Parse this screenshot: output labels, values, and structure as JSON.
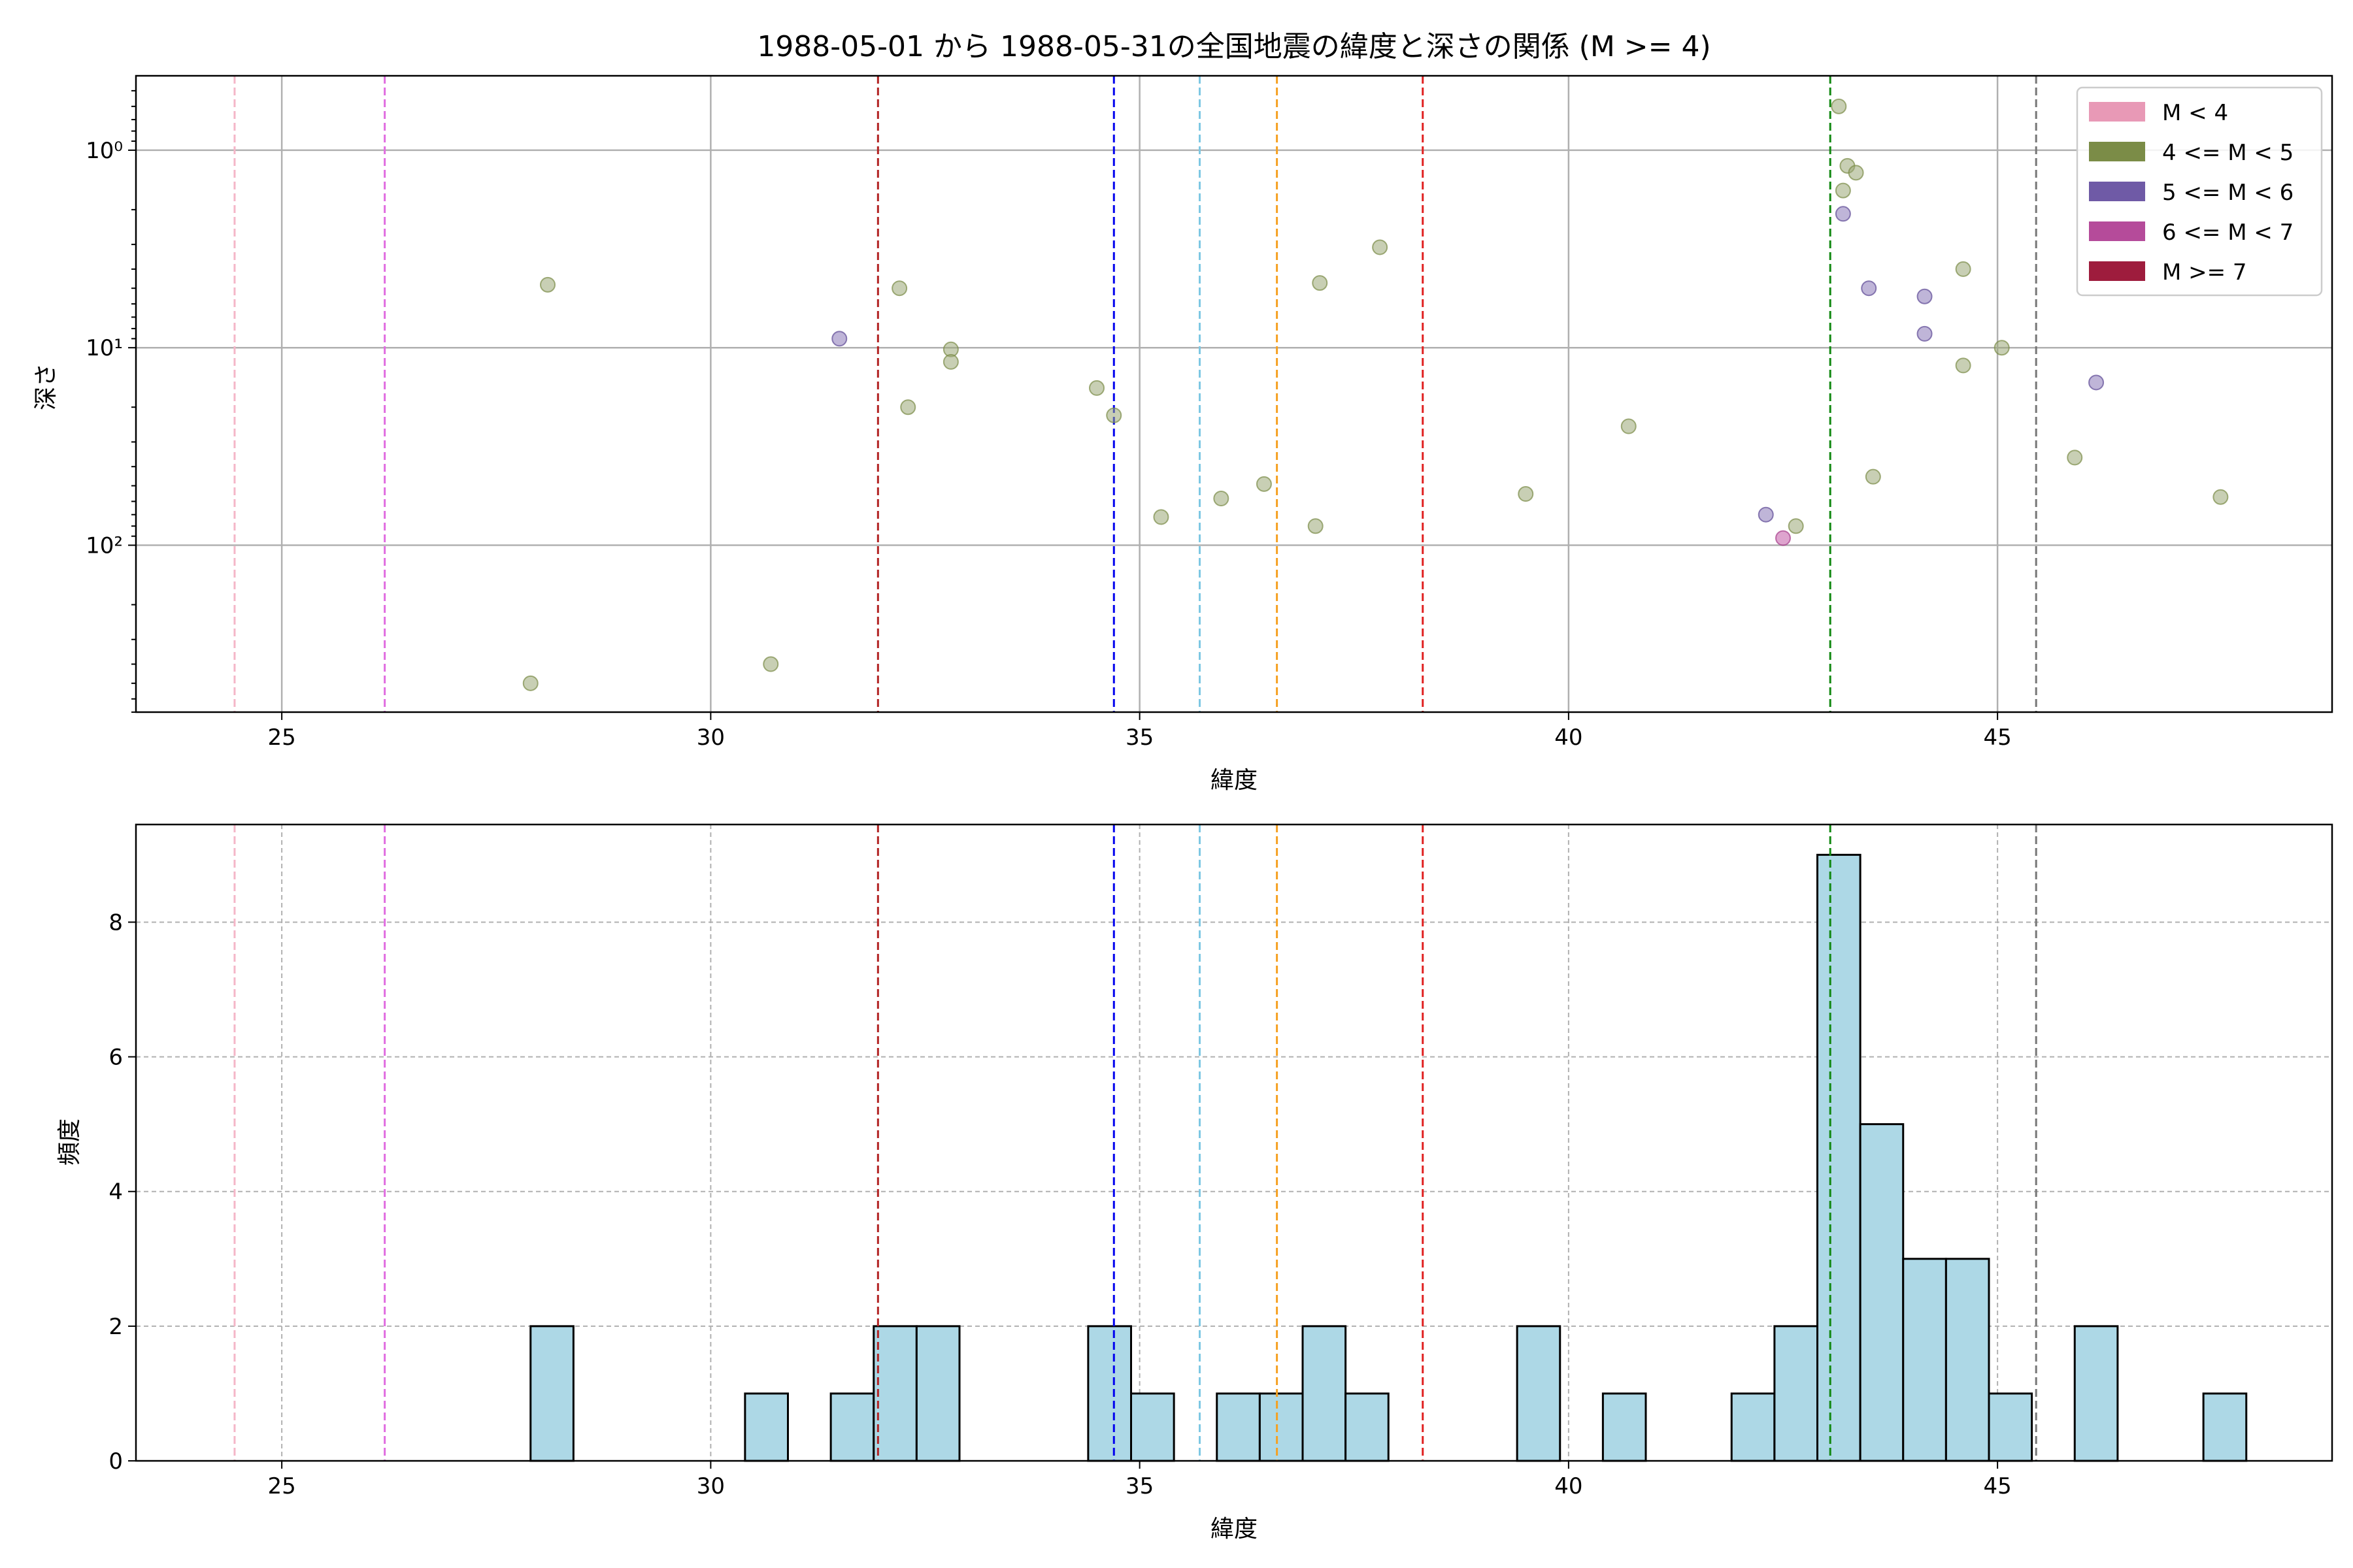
{
  "chart_data": [
    {
      "type": "scatter",
      "title": "1988-05-01 から 1988-05-31の全国地震の緯度と深さの関係 (M >= 4)",
      "xlabel": "緯度",
      "ylabel": "深さ",
      "xlim": [
        23.3,
        48.9
      ],
      "ylim": [
        0.42,
        700
      ],
      "y_scale": "log",
      "y_inverted": true,
      "x_ticks": [
        25,
        30,
        35,
        40,
        45
      ],
      "y_ticks": [
        {
          "value": 1,
          "label": "10⁰"
        },
        {
          "value": 10,
          "label": "10¹"
        },
        {
          "value": 100,
          "label": "10²"
        }
      ],
      "grid": true,
      "legend_position": "top-right",
      "legend": [
        {
          "label": "M < 4",
          "color": "#e899b6"
        },
        {
          "label": "4 <= M < 5",
          "color": "#7b8c47"
        },
        {
          "label": "5 <= M < 6",
          "color": "#6f5aa6"
        },
        {
          "label": "6 <= M < 7",
          "color": "#b54b9a"
        },
        {
          "label": "M >= 7",
          "color": "#9e1c3d"
        }
      ],
      "vertical_lines": [
        {
          "x": 24.45,
          "color": "#f4b6c8"
        },
        {
          "x": 26.2,
          "color": "#e06ee0"
        },
        {
          "x": 31.95,
          "color": "#b22222"
        },
        {
          "x": 34.7,
          "color": "#0000ee"
        },
        {
          "x": 35.7,
          "color": "#7ec8e3"
        },
        {
          "x": 36.6,
          "color": "#f5a020"
        },
        {
          "x": 38.3,
          "color": "#e02020"
        },
        {
          "x": 43.05,
          "color": "#118811"
        },
        {
          "x": 45.45,
          "color": "#777777"
        }
      ],
      "points": [
        {
          "x": 27.9,
          "y": 500,
          "m": "4-5"
        },
        {
          "x": 28.1,
          "y": 4.8,
          "m": "4-5"
        },
        {
          "x": 30.7,
          "y": 400,
          "m": "4-5"
        },
        {
          "x": 31.5,
          "y": 9,
          "m": "5-6"
        },
        {
          "x": 32.2,
          "y": 5,
          "m": "4-5"
        },
        {
          "x": 32.3,
          "y": 20,
          "m": "4-5"
        },
        {
          "x": 32.8,
          "y": 10.2,
          "m": "4-5"
        },
        {
          "x": 32.8,
          "y": 11.8,
          "m": "4-5"
        },
        {
          "x": 34.5,
          "y": 16,
          "m": "4-5"
        },
        {
          "x": 34.7,
          "y": 22,
          "m": "4-5"
        },
        {
          "x": 35.25,
          "y": 72,
          "m": "4-5"
        },
        {
          "x": 35.95,
          "y": 58,
          "m": "4-5"
        },
        {
          "x": 36.45,
          "y": 49,
          "m": "4-5"
        },
        {
          "x": 37.05,
          "y": 80,
          "m": "4-5"
        },
        {
          "x": 37.1,
          "y": 4.7,
          "m": "4-5"
        },
        {
          "x": 37.8,
          "y": 3.1,
          "m": "4-5"
        },
        {
          "x": 39.5,
          "y": 55,
          "m": "4-5"
        },
        {
          "x": 40.7,
          "y": 25,
          "m": "4-5"
        },
        {
          "x": 42.3,
          "y": 70,
          "m": "5-6"
        },
        {
          "x": 42.5,
          "y": 92,
          "m": "6-7"
        },
        {
          "x": 42.65,
          "y": 80,
          "m": "4-5"
        },
        {
          "x": 43.15,
          "y": 0.6,
          "m": "4-5"
        },
        {
          "x": 43.2,
          "y": 1.6,
          "m": "4-5"
        },
        {
          "x": 43.2,
          "y": 2.1,
          "m": "5-6"
        },
        {
          "x": 43.25,
          "y": 1.2,
          "m": "4-5"
        },
        {
          "x": 43.35,
          "y": 1.3,
          "m": "4-5"
        },
        {
          "x": 43.5,
          "y": 5,
          "m": "5-6"
        },
        {
          "x": 43.55,
          "y": 45,
          "m": "4-5"
        },
        {
          "x": 44.15,
          "y": 5.5,
          "m": "5-6"
        },
        {
          "x": 44.15,
          "y": 8.5,
          "m": "5-6"
        },
        {
          "x": 44.6,
          "y": 4,
          "m": "4-5"
        },
        {
          "x": 44.6,
          "y": 12.3,
          "m": "4-5"
        },
        {
          "x": 45.05,
          "y": 10,
          "m": "4-5"
        },
        {
          "x": 45.9,
          "y": 36,
          "m": "4-5"
        },
        {
          "x": 46.15,
          "y": 15,
          "m": "5-6"
        },
        {
          "x": 47.6,
          "y": 57,
          "m": "4-5"
        }
      ]
    },
    {
      "type": "bar",
      "title": "",
      "xlabel": "緯度",
      "ylabel": "頻度",
      "xlim": [
        23.3,
        48.9
      ],
      "ylim": [
        0,
        9.45
      ],
      "x_ticks": [
        25,
        30,
        35,
        40,
        45
      ],
      "y_ticks": [
        0,
        2,
        4,
        6,
        8
      ],
      "grid": true,
      "bin_width": 0.5,
      "bar_color": "#add8e6",
      "vertical_lines": [
        {
          "x": 24.45,
          "color": "#f4b6c8"
        },
        {
          "x": 26.2,
          "color": "#e06ee0"
        },
        {
          "x": 31.95,
          "color": "#b22222"
        },
        {
          "x": 34.7,
          "color": "#0000ee"
        },
        {
          "x": 35.7,
          "color": "#7ec8e3"
        },
        {
          "x": 36.6,
          "color": "#f5a020"
        },
        {
          "x": 38.3,
          "color": "#e02020"
        },
        {
          "x": 43.05,
          "color": "#118811"
        },
        {
          "x": 45.45,
          "color": "#777777"
        }
      ],
      "bins": [
        {
          "start": 27.9,
          "count": 2
        },
        {
          "start": 30.4,
          "count": 1
        },
        {
          "start": 31.4,
          "count": 1
        },
        {
          "start": 31.9,
          "count": 2
        },
        {
          "start": 32.4,
          "count": 2
        },
        {
          "start": 34.4,
          "count": 2
        },
        {
          "start": 34.9,
          "count": 1
        },
        {
          "start": 35.9,
          "count": 1
        },
        {
          "start": 36.4,
          "count": 1
        },
        {
          "start": 36.9,
          "count": 2
        },
        {
          "start": 37.4,
          "count": 1
        },
        {
          "start": 39.4,
          "count": 2
        },
        {
          "start": 40.4,
          "count": 1
        },
        {
          "start": 41.9,
          "count": 1
        },
        {
          "start": 42.4,
          "count": 2
        },
        {
          "start": 42.9,
          "count": 9
        },
        {
          "start": 43.4,
          "count": 5
        },
        {
          "start": 43.9,
          "count": 3
        },
        {
          "start": 44.4,
          "count": 3
        },
        {
          "start": 44.9,
          "count": 1
        },
        {
          "start": 45.9,
          "count": 2
        },
        {
          "start": 47.4,
          "count": 1
        }
      ]
    }
  ]
}
